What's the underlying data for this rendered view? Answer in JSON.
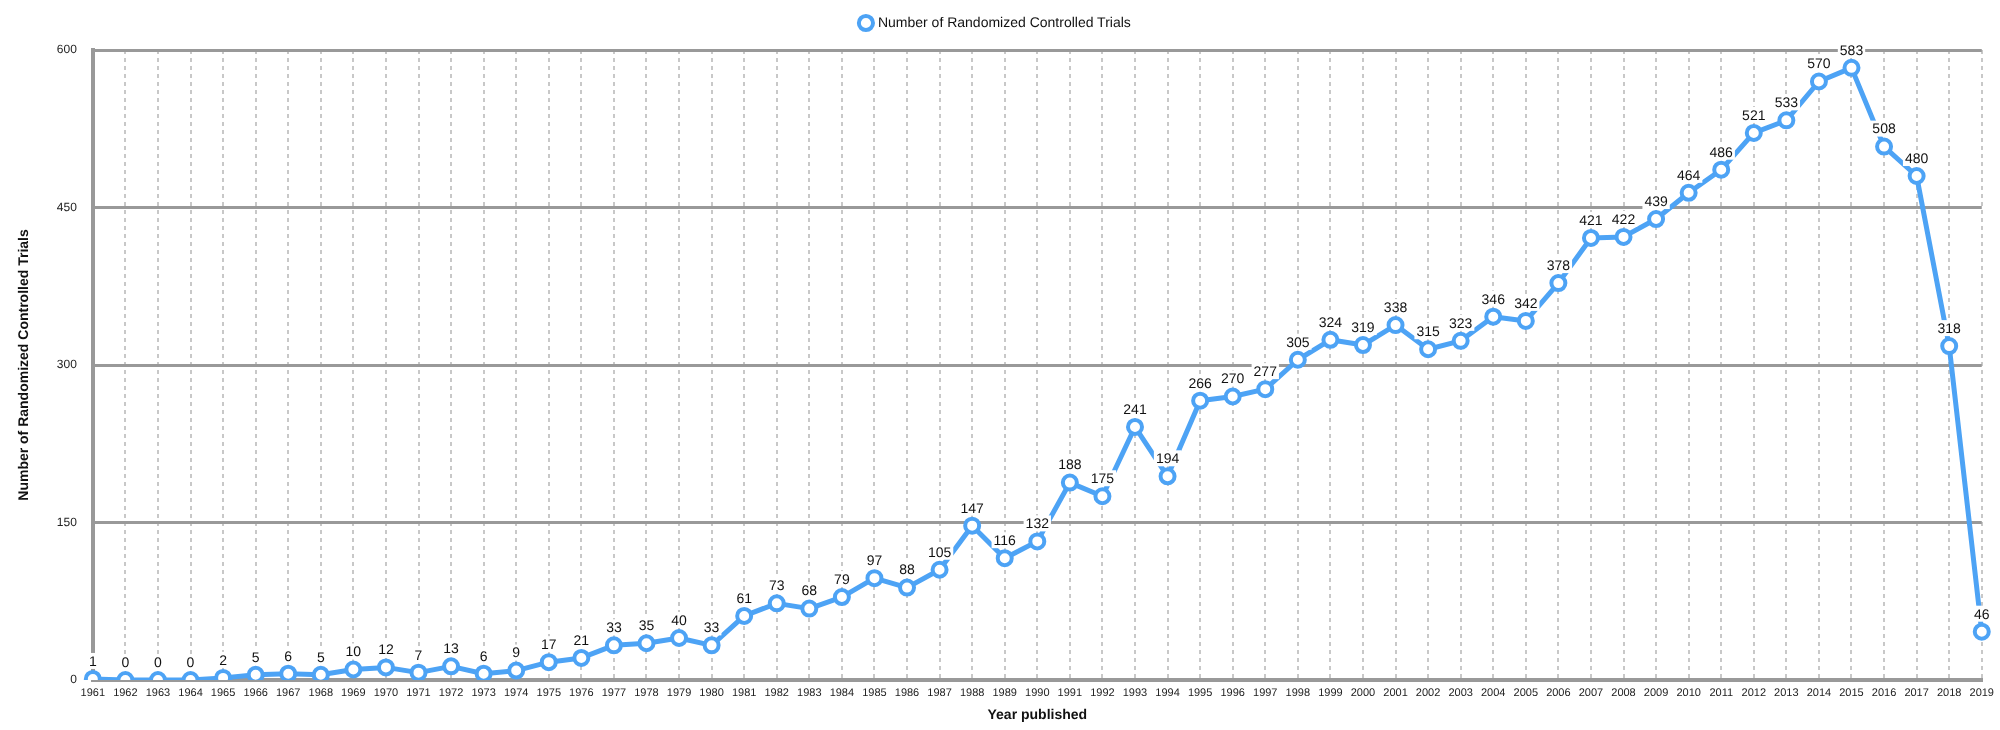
{
  "chart_data": {
    "type": "line",
    "xlabel": "Year published",
    "ylabel": "Number of Randomized Controlled Trials",
    "categories": [
      "1961",
      "1962",
      "1963",
      "1964",
      "1965",
      "1966",
      "1967",
      "1968",
      "1969",
      "1970",
      "1971",
      "1972",
      "1973",
      "1974",
      "1975",
      "1976",
      "1977",
      "1978",
      "1979",
      "1980",
      "1981",
      "1982",
      "1983",
      "1984",
      "1985",
      "1986",
      "1987",
      "1988",
      "1989",
      "1990",
      "1991",
      "1992",
      "1993",
      "1994",
      "1995",
      "1996",
      "1997",
      "1998",
      "1999",
      "2000",
      "2001",
      "2002",
      "2003",
      "2004",
      "2005",
      "2006",
      "2007",
      "2008",
      "2009",
      "2010",
      "2011",
      "2012",
      "2013",
      "2014",
      "2015",
      "2016",
      "2017",
      "2018",
      "2019"
    ],
    "series": [
      {
        "name": "Number of Randomized Controlled Trials",
        "color": "#4da3f5",
        "values": [
          1,
          0,
          0,
          0,
          2,
          5,
          6,
          5,
          10,
          12,
          7,
          13,
          6,
          9,
          17,
          21,
          33,
          35,
          40,
          33,
          61,
          73,
          68,
          79,
          97,
          88,
          105,
          147,
          116,
          132,
          188,
          175,
          241,
          194,
          266,
          270,
          277,
          305,
          324,
          319,
          338,
          315,
          323,
          346,
          342,
          378,
          421,
          422,
          439,
          464,
          486,
          521,
          533,
          570,
          583,
          508,
          480,
          318,
          46
        ]
      }
    ],
    "ylim": [
      0,
      600
    ],
    "yticks": [
      0,
      150,
      300,
      450,
      600
    ],
    "grid": true,
    "legend": "top",
    "marker": "circle",
    "line_style": "solid",
    "data_labels": true
  }
}
